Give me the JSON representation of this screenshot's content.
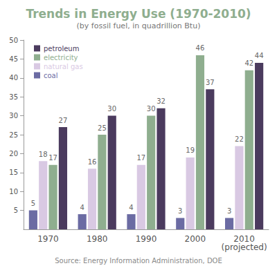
{
  "chart_data": {
    "type": "bar",
    "title": "Trends in Energy Use (1970-2010)",
    "subtitle": "(by fossil fuel, in quadrillion Btu)",
    "source": "Source: Energy Information Administration, DOE",
    "categories": [
      "1970",
      "1980",
      "1990",
      "2000",
      "2010 (projected)"
    ],
    "series": [
      {
        "name": "coal",
        "color": "#6b6ba3",
        "values": [
          5,
          4,
          4,
          3,
          3
        ]
      },
      {
        "name": "natural gas",
        "color": "#d9c9e3",
        "values": [
          18,
          16,
          17,
          19,
          22
        ]
      },
      {
        "name": "electricity",
        "color": "#8fae8f",
        "values": [
          17,
          25,
          30,
          46,
          42
        ]
      },
      {
        "name": "petroleum",
        "color": "#4b3b5e",
        "values": [
          27,
          30,
          32,
          37,
          44
        ]
      }
    ],
    "ylim": [
      0,
      50
    ],
    "yticks": [
      5,
      10,
      15,
      20,
      25,
      30,
      35,
      40,
      45,
      50
    ],
    "grid": false,
    "legend": "top-left",
    "data_labels": true
  }
}
